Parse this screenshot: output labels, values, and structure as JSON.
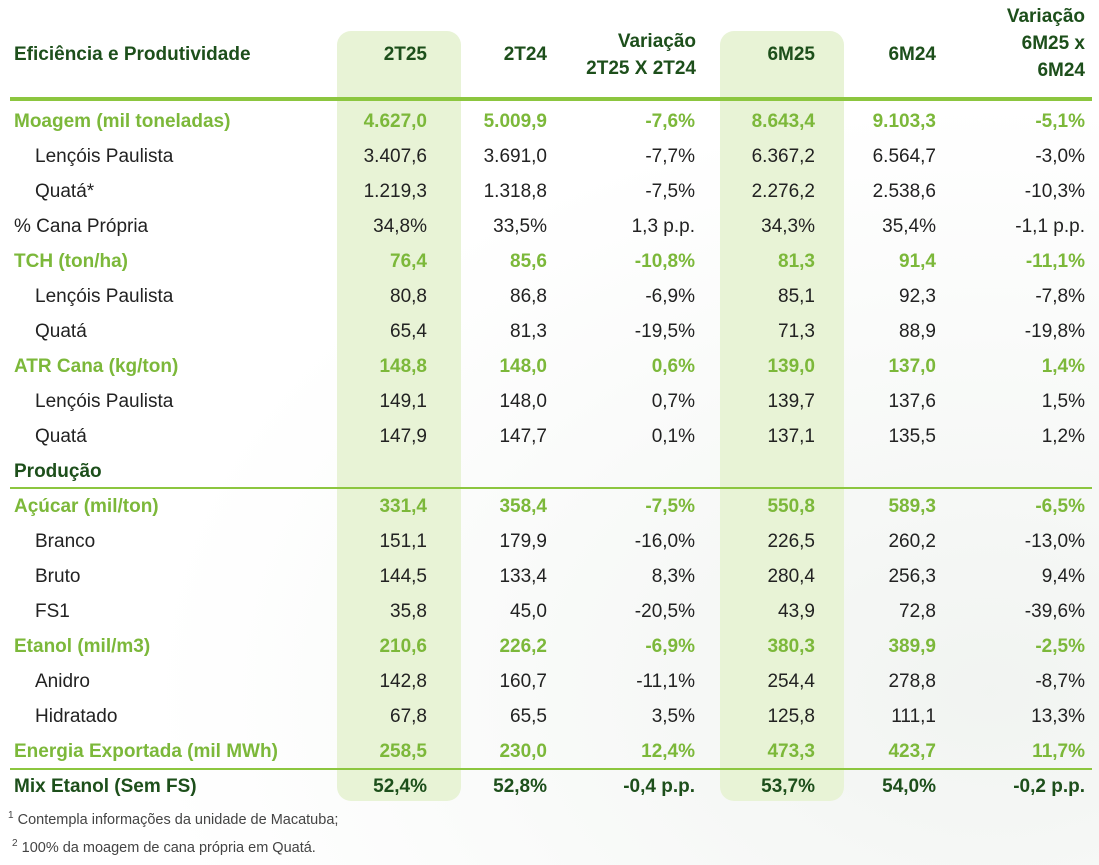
{
  "header": {
    "title": "Eficiência e Produtividade",
    "cols": [
      "2T25",
      "2T24",
      [
        "Variação",
        "2T25 X 2T24"
      ],
      "6M25",
      "6M24",
      [
        "Variação",
        "6M25 x",
        "6M24"
      ]
    ]
  },
  "rows": [
    {
      "style": "green",
      "label": "Moagem (mil toneladas)",
      "v": [
        "4.627,0",
        "5.009,9",
        "-7,6%",
        "8.643,4",
        "9.103,3",
        "-5,1%"
      ]
    },
    {
      "style": "sub",
      "label": "Lençóis Paulista",
      "v": [
        "3.407,6",
        "3.691,0",
        "-7,7%",
        "6.367,2",
        "6.564,7",
        "-3,0%"
      ]
    },
    {
      "style": "sub",
      "label": "Quatá*",
      "v": [
        "1.219,3",
        "1.318,8",
        "-7,5%",
        "2.276,2",
        "2.538,6",
        "-10,3%"
      ]
    },
    {
      "style": "plain",
      "label": "% Cana Própria",
      "v": [
        "34,8%",
        "33,5%",
        "1,3 p.p.",
        "34,3%",
        "35,4%",
        "-1,1 p.p."
      ]
    },
    {
      "style": "green",
      "label": "TCH (ton/ha)",
      "v": [
        "76,4",
        "85,6",
        "-10,8%",
        "81,3",
        "91,4",
        "-11,1%"
      ]
    },
    {
      "style": "sub",
      "label": "Lençóis Paulista",
      "v": [
        "80,8",
        "86,8",
        "-6,9%",
        "85,1",
        "92,3",
        "-7,8%"
      ]
    },
    {
      "style": "sub",
      "label": "Quatá",
      "v": [
        "65,4",
        "81,3",
        "-19,5%",
        "71,3",
        "88,9",
        "-19,8%"
      ]
    },
    {
      "style": "green",
      "label": "ATR Cana (kg/ton)",
      "v": [
        "148,8",
        "148,0",
        "0,6%",
        "139,0",
        "137,0",
        "1,4%"
      ]
    },
    {
      "style": "sub",
      "label": "Lençóis Paulista",
      "v": [
        "149,1",
        "148,0",
        "0,7%",
        "139,7",
        "137,6",
        "1,5%"
      ]
    },
    {
      "style": "sub",
      "label": "Quatá",
      "v": [
        "147,9",
        "147,7",
        "0,1%",
        "137,1",
        "135,5",
        "1,2%"
      ]
    },
    {
      "style": "section",
      "label": "Produção",
      "v": [
        "",
        "",
        "",
        "",
        "",
        ""
      ]
    },
    {
      "style": "green",
      "label": "Açúcar (mil/ton)",
      "v": [
        "331,4",
        "358,4",
        "-7,5%",
        "550,8",
        "589,3",
        "-6,5%"
      ]
    },
    {
      "style": "sub",
      "label": "Branco",
      "v": [
        "151,1",
        "179,9",
        "-16,0%",
        "226,5",
        "260,2",
        "-13,0%"
      ]
    },
    {
      "style": "sub",
      "label": "Bruto",
      "v": [
        "144,5",
        "133,4",
        "8,3%",
        "280,4",
        "256,3",
        "9,4%"
      ]
    },
    {
      "style": "sub",
      "label": "FS1",
      "v": [
        "35,8",
        "45,0",
        "-20,5%",
        "43,9",
        "72,8",
        "-39,6%"
      ]
    },
    {
      "style": "green",
      "label": "Etanol (mil/m3)",
      "v": [
        "210,6",
        "226,2",
        "-6,9%",
        "380,3",
        "389,9",
        "-2,5%"
      ]
    },
    {
      "style": "sub",
      "label": "Anidro",
      "v": [
        "142,8",
        "160,7",
        "-11,1%",
        "254,4",
        "278,8",
        "-8,7%"
      ]
    },
    {
      "style": "sub",
      "label": "Hidratado",
      "v": [
        "67,8",
        "65,5",
        "3,5%",
        "125,8",
        "111,1",
        "13,3%"
      ]
    },
    {
      "style": "green",
      "label": "Energia Exportada (mil MWh)",
      "v": [
        "258,5",
        "230,0",
        "12,4%",
        "473,3",
        "423,7",
        "11,7%"
      ]
    },
    {
      "style": "dark",
      "label": "Mix Etanol (Sem FS)",
      "v": [
        "52,4%",
        "52,8%",
        "-0,4 p.p.",
        "53,7%",
        "54,0%",
        "-0,2 p.p."
      ]
    }
  ],
  "footnotes": [
    {
      "mark": "1",
      "text": "Contempla informações da unidade de Macatuba;"
    },
    {
      "mark": "2",
      "text": "100% da moagem de cana própria em Quatá."
    }
  ],
  "colors": {
    "green": "#7cb83a",
    "dark_green": "#1d4f1b",
    "rule": "#8cc63f",
    "highlight": "#e8f3d6"
  }
}
